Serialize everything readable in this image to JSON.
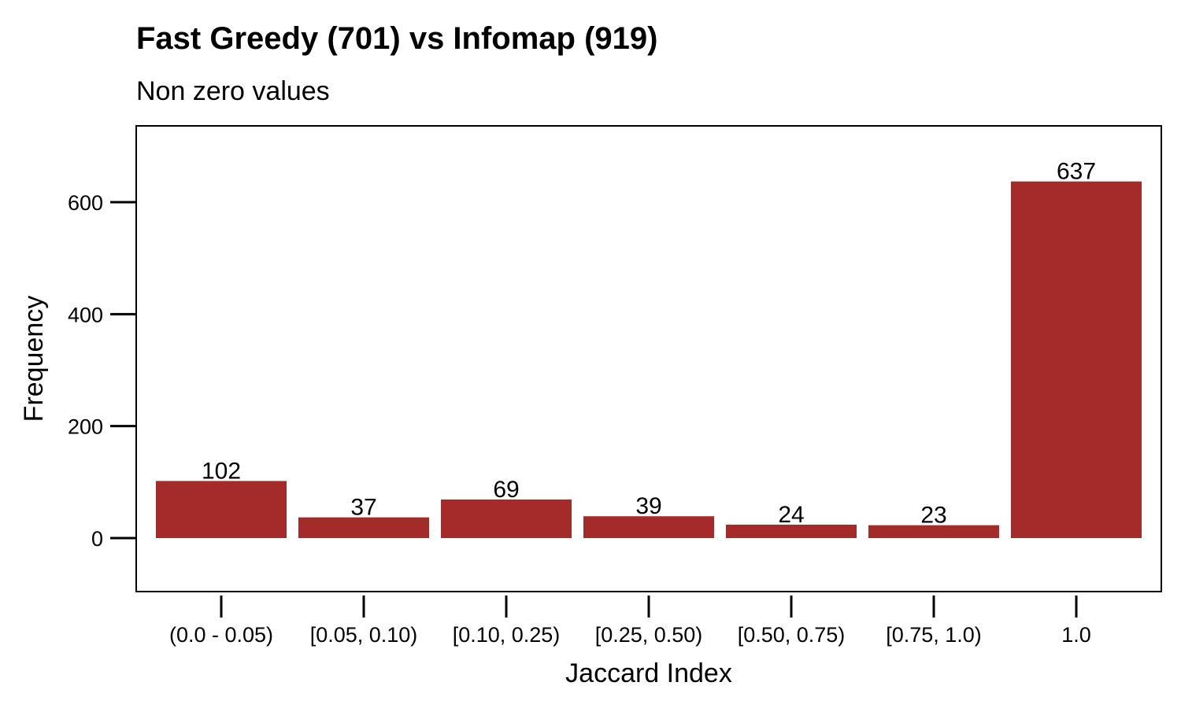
{
  "chart_data": {
    "type": "bar",
    "title": "Fast Greedy (701) vs Infomap (919)",
    "subtitle": "Non zero values",
    "xlabel": "Jaccard Index",
    "ylabel": "Frequency",
    "categories": [
      "(0.0 - 0.05)",
      "[0.05, 0.10)",
      "[0.10, 0.25)",
      "[0.25, 0.50)",
      "[0.50, 0.75)",
      "[0.75, 1.0)",
      "1.0"
    ],
    "values": [
      102,
      37,
      69,
      39,
      24,
      23,
      637
    ],
    "data_labels": [
      "102",
      "37",
      "69",
      "39",
      "24",
      "23",
      "637"
    ],
    "ylim": [
      -95,
      735
    ],
    "yticks": [
      0,
      200,
      400,
      600
    ],
    "ytick_labels": [
      "0",
      "200",
      "400",
      "600"
    ],
    "grid": false,
    "bar_color": "#a52a2a"
  }
}
